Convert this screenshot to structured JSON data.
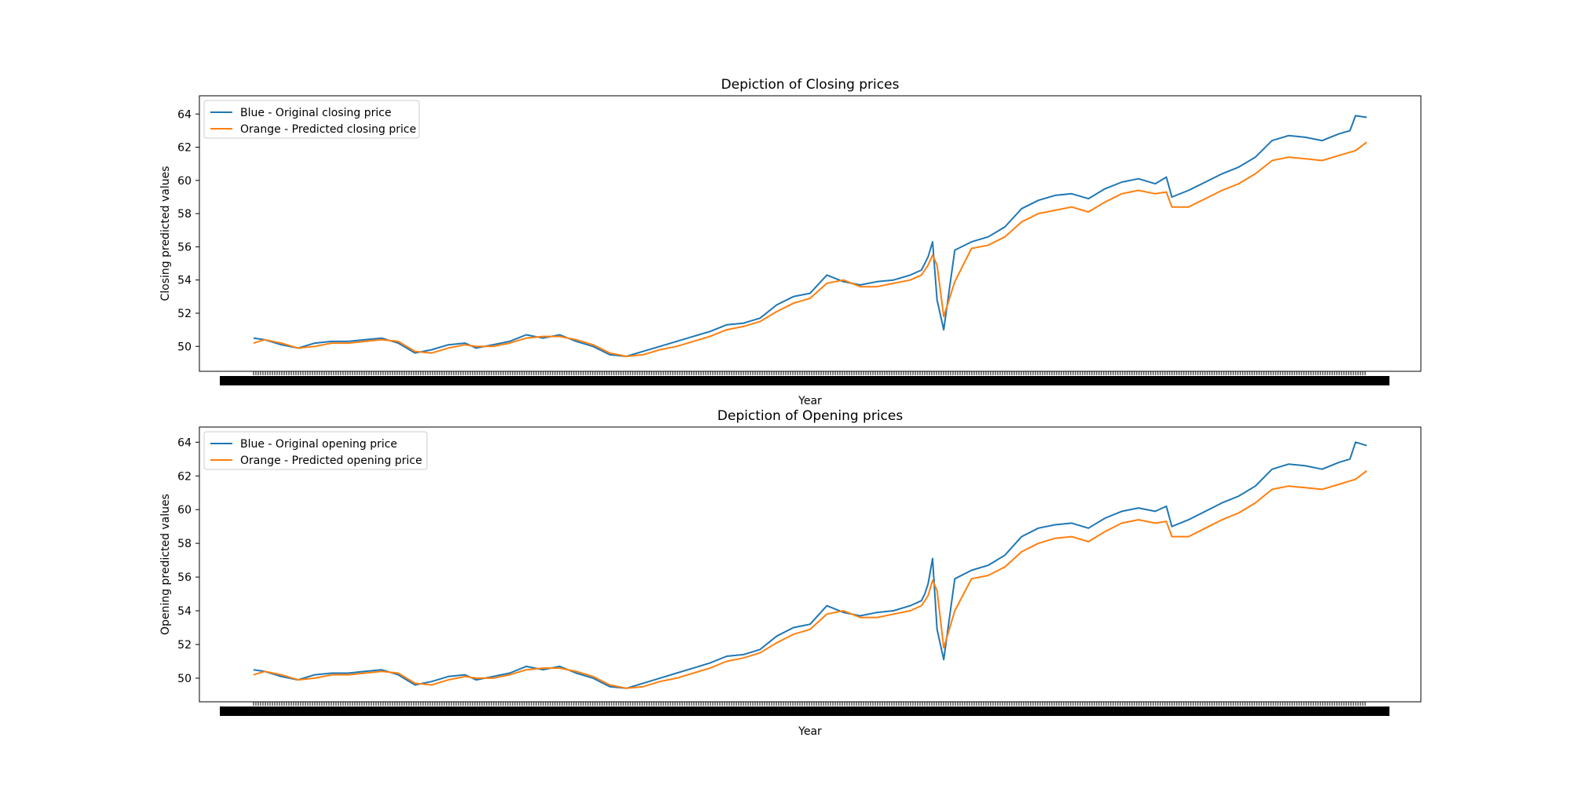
{
  "chart_data": [
    {
      "type": "line",
      "title": "Depiction of Closing prices",
      "xlabel": "Year",
      "ylabel": "Closing predicted values",
      "ylim": [
        48.5,
        65.1
      ],
      "yticks": [
        50,
        52,
        54,
        56,
        58,
        60,
        62,
        64
      ],
      "x_range": [
        0,
        1
      ],
      "grid": false,
      "legend_position": "top-left",
      "legend": [
        "Blue - Original closing price",
        "Orange - Predicted closing price"
      ],
      "series": [
        {
          "name": "Blue - Original closing price",
          "color": "#1f77b4",
          "x": [
            0.0,
            0.01,
            0.025,
            0.04,
            0.055,
            0.07,
            0.085,
            0.1,
            0.115,
            0.13,
            0.145,
            0.16,
            0.175,
            0.19,
            0.2,
            0.215,
            0.23,
            0.245,
            0.26,
            0.275,
            0.29,
            0.305,
            0.32,
            0.335,
            0.35,
            0.365,
            0.38,
            0.395,
            0.41,
            0.425,
            0.44,
            0.455,
            0.47,
            0.485,
            0.5,
            0.515,
            0.53,
            0.545,
            0.56,
            0.575,
            0.59,
            0.6,
            0.603,
            0.606,
            0.61,
            0.614,
            0.62,
            0.63,
            0.645,
            0.66,
            0.675,
            0.69,
            0.705,
            0.72,
            0.735,
            0.75,
            0.765,
            0.78,
            0.795,
            0.81,
            0.82,
            0.825,
            0.84,
            0.855,
            0.87,
            0.885,
            0.9,
            0.915,
            0.93,
            0.945,
            0.96,
            0.975,
            0.985,
            0.99,
            1.0
          ],
          "y": [
            50.5,
            50.4,
            50.1,
            49.9,
            50.2,
            50.3,
            50.3,
            50.4,
            50.5,
            50.2,
            49.6,
            49.8,
            50.1,
            50.2,
            49.9,
            50.1,
            50.3,
            50.7,
            50.5,
            50.7,
            50.3,
            50.0,
            49.5,
            49.4,
            49.7,
            50.0,
            50.3,
            50.6,
            50.9,
            51.3,
            51.4,
            51.7,
            52.5,
            53.0,
            53.2,
            54.3,
            53.9,
            53.7,
            53.9,
            54.0,
            54.3,
            54.6,
            55.0,
            55.4,
            56.3,
            52.8,
            51.0,
            55.8,
            56.3,
            56.6,
            57.2,
            58.3,
            58.8,
            59.1,
            59.2,
            58.9,
            59.5,
            59.9,
            60.1,
            59.8,
            60.2,
            59.0,
            59.4,
            59.9,
            60.4,
            60.8,
            61.4,
            62.4,
            62.7,
            62.6,
            62.4,
            62.8,
            63.0,
            63.9,
            63.8
          ]
        },
        {
          "name": "Orange - Predicted closing price",
          "color": "#ff7f0e",
          "x": [
            0.0,
            0.01,
            0.025,
            0.04,
            0.055,
            0.07,
            0.085,
            0.1,
            0.115,
            0.13,
            0.145,
            0.16,
            0.175,
            0.19,
            0.2,
            0.215,
            0.23,
            0.245,
            0.26,
            0.275,
            0.29,
            0.305,
            0.32,
            0.335,
            0.35,
            0.365,
            0.38,
            0.395,
            0.41,
            0.425,
            0.44,
            0.455,
            0.47,
            0.485,
            0.5,
            0.515,
            0.53,
            0.545,
            0.56,
            0.575,
            0.59,
            0.6,
            0.603,
            0.606,
            0.61,
            0.614,
            0.62,
            0.63,
            0.645,
            0.66,
            0.675,
            0.69,
            0.705,
            0.72,
            0.735,
            0.75,
            0.765,
            0.78,
            0.795,
            0.81,
            0.82,
            0.825,
            0.84,
            0.855,
            0.87,
            0.885,
            0.9,
            0.915,
            0.93,
            0.945,
            0.96,
            0.975,
            0.985,
            0.99,
            1.0
          ],
          "y": [
            50.2,
            50.4,
            50.2,
            49.9,
            50.0,
            50.2,
            50.2,
            50.3,
            50.4,
            50.3,
            49.7,
            49.6,
            49.9,
            50.1,
            50.0,
            50.0,
            50.2,
            50.5,
            50.6,
            50.6,
            50.4,
            50.1,
            49.6,
            49.4,
            49.5,
            49.8,
            50.0,
            50.3,
            50.6,
            51.0,
            51.2,
            51.5,
            52.1,
            52.6,
            52.9,
            53.8,
            54.0,
            53.6,
            53.6,
            53.8,
            54.0,
            54.3,
            54.6,
            54.9,
            55.5,
            54.9,
            51.8,
            53.9,
            55.9,
            56.1,
            56.6,
            57.5,
            58.0,
            58.2,
            58.4,
            58.1,
            58.7,
            59.2,
            59.4,
            59.2,
            59.3,
            58.4,
            58.4,
            58.9,
            59.4,
            59.8,
            60.4,
            61.2,
            61.4,
            61.3,
            61.2,
            61.5,
            61.7,
            61.8,
            62.3
          ]
        }
      ]
    },
    {
      "type": "line",
      "title": "Depiction of Opening prices",
      "xlabel": "Year",
      "ylabel": "Opening predicted values",
      "ylim": [
        48.6,
        64.9
      ],
      "yticks": [
        50,
        52,
        54,
        56,
        58,
        60,
        62,
        64
      ],
      "x_range": [
        0,
        1
      ],
      "grid": false,
      "legend_position": "top-left",
      "legend": [
        "Blue - Original opening price",
        "Orange - Predicted opening price"
      ],
      "series": [
        {
          "name": "Blue - Original opening price",
          "color": "#1f77b4",
          "x": [
            0.0,
            0.01,
            0.025,
            0.04,
            0.055,
            0.07,
            0.085,
            0.1,
            0.115,
            0.13,
            0.145,
            0.16,
            0.175,
            0.19,
            0.2,
            0.215,
            0.23,
            0.245,
            0.26,
            0.275,
            0.29,
            0.305,
            0.32,
            0.335,
            0.35,
            0.365,
            0.38,
            0.395,
            0.41,
            0.425,
            0.44,
            0.455,
            0.47,
            0.485,
            0.5,
            0.515,
            0.53,
            0.545,
            0.56,
            0.575,
            0.59,
            0.6,
            0.603,
            0.606,
            0.61,
            0.614,
            0.62,
            0.63,
            0.645,
            0.66,
            0.675,
            0.69,
            0.705,
            0.72,
            0.735,
            0.75,
            0.765,
            0.78,
            0.795,
            0.81,
            0.82,
            0.825,
            0.84,
            0.855,
            0.87,
            0.885,
            0.9,
            0.915,
            0.93,
            0.945,
            0.96,
            0.975,
            0.985,
            0.99,
            1.0
          ],
          "y": [
            50.5,
            50.4,
            50.1,
            49.9,
            50.2,
            50.3,
            50.3,
            50.4,
            50.5,
            50.2,
            49.6,
            49.8,
            50.1,
            50.2,
            49.9,
            50.1,
            50.3,
            50.7,
            50.5,
            50.7,
            50.3,
            50.0,
            49.5,
            49.4,
            49.7,
            50.0,
            50.3,
            50.6,
            50.9,
            51.3,
            51.4,
            51.7,
            52.5,
            53.0,
            53.2,
            54.3,
            53.9,
            53.7,
            53.9,
            54.0,
            54.3,
            54.6,
            55.0,
            55.6,
            57.1,
            52.9,
            51.1,
            55.9,
            56.4,
            56.7,
            57.3,
            58.4,
            58.9,
            59.1,
            59.2,
            58.9,
            59.5,
            59.9,
            60.1,
            59.9,
            60.2,
            59.0,
            59.4,
            59.9,
            60.4,
            60.8,
            61.4,
            62.4,
            62.7,
            62.6,
            62.4,
            62.8,
            63.0,
            64.0,
            63.8
          ]
        },
        {
          "name": "Orange - Predicted opening price",
          "color": "#ff7f0e",
          "x": [
            0.0,
            0.01,
            0.025,
            0.04,
            0.055,
            0.07,
            0.085,
            0.1,
            0.115,
            0.13,
            0.145,
            0.16,
            0.175,
            0.19,
            0.2,
            0.215,
            0.23,
            0.245,
            0.26,
            0.275,
            0.29,
            0.305,
            0.32,
            0.335,
            0.35,
            0.365,
            0.38,
            0.395,
            0.41,
            0.425,
            0.44,
            0.455,
            0.47,
            0.485,
            0.5,
            0.515,
            0.53,
            0.545,
            0.56,
            0.575,
            0.59,
            0.6,
            0.603,
            0.606,
            0.61,
            0.614,
            0.62,
            0.63,
            0.645,
            0.66,
            0.675,
            0.69,
            0.705,
            0.72,
            0.735,
            0.75,
            0.765,
            0.78,
            0.795,
            0.81,
            0.82,
            0.825,
            0.84,
            0.855,
            0.87,
            0.885,
            0.9,
            0.915,
            0.93,
            0.945,
            0.96,
            0.975,
            0.985,
            0.99,
            1.0
          ],
          "y": [
            50.2,
            50.4,
            50.2,
            49.9,
            50.0,
            50.2,
            50.2,
            50.3,
            50.4,
            50.3,
            49.7,
            49.6,
            49.9,
            50.1,
            50.0,
            50.0,
            50.2,
            50.5,
            50.6,
            50.6,
            50.4,
            50.1,
            49.6,
            49.4,
            49.5,
            49.8,
            50.0,
            50.3,
            50.6,
            51.0,
            51.2,
            51.5,
            52.1,
            52.6,
            52.9,
            53.8,
            54.0,
            53.6,
            53.6,
            53.8,
            54.0,
            54.3,
            54.6,
            54.9,
            55.8,
            55.2,
            51.8,
            54.0,
            55.9,
            56.1,
            56.6,
            57.5,
            58.0,
            58.3,
            58.4,
            58.1,
            58.7,
            59.2,
            59.4,
            59.2,
            59.3,
            58.4,
            58.4,
            58.9,
            59.4,
            59.8,
            60.4,
            61.2,
            61.4,
            61.3,
            61.2,
            61.5,
            61.7,
            61.8,
            62.3
          ]
        }
      ]
    }
  ]
}
